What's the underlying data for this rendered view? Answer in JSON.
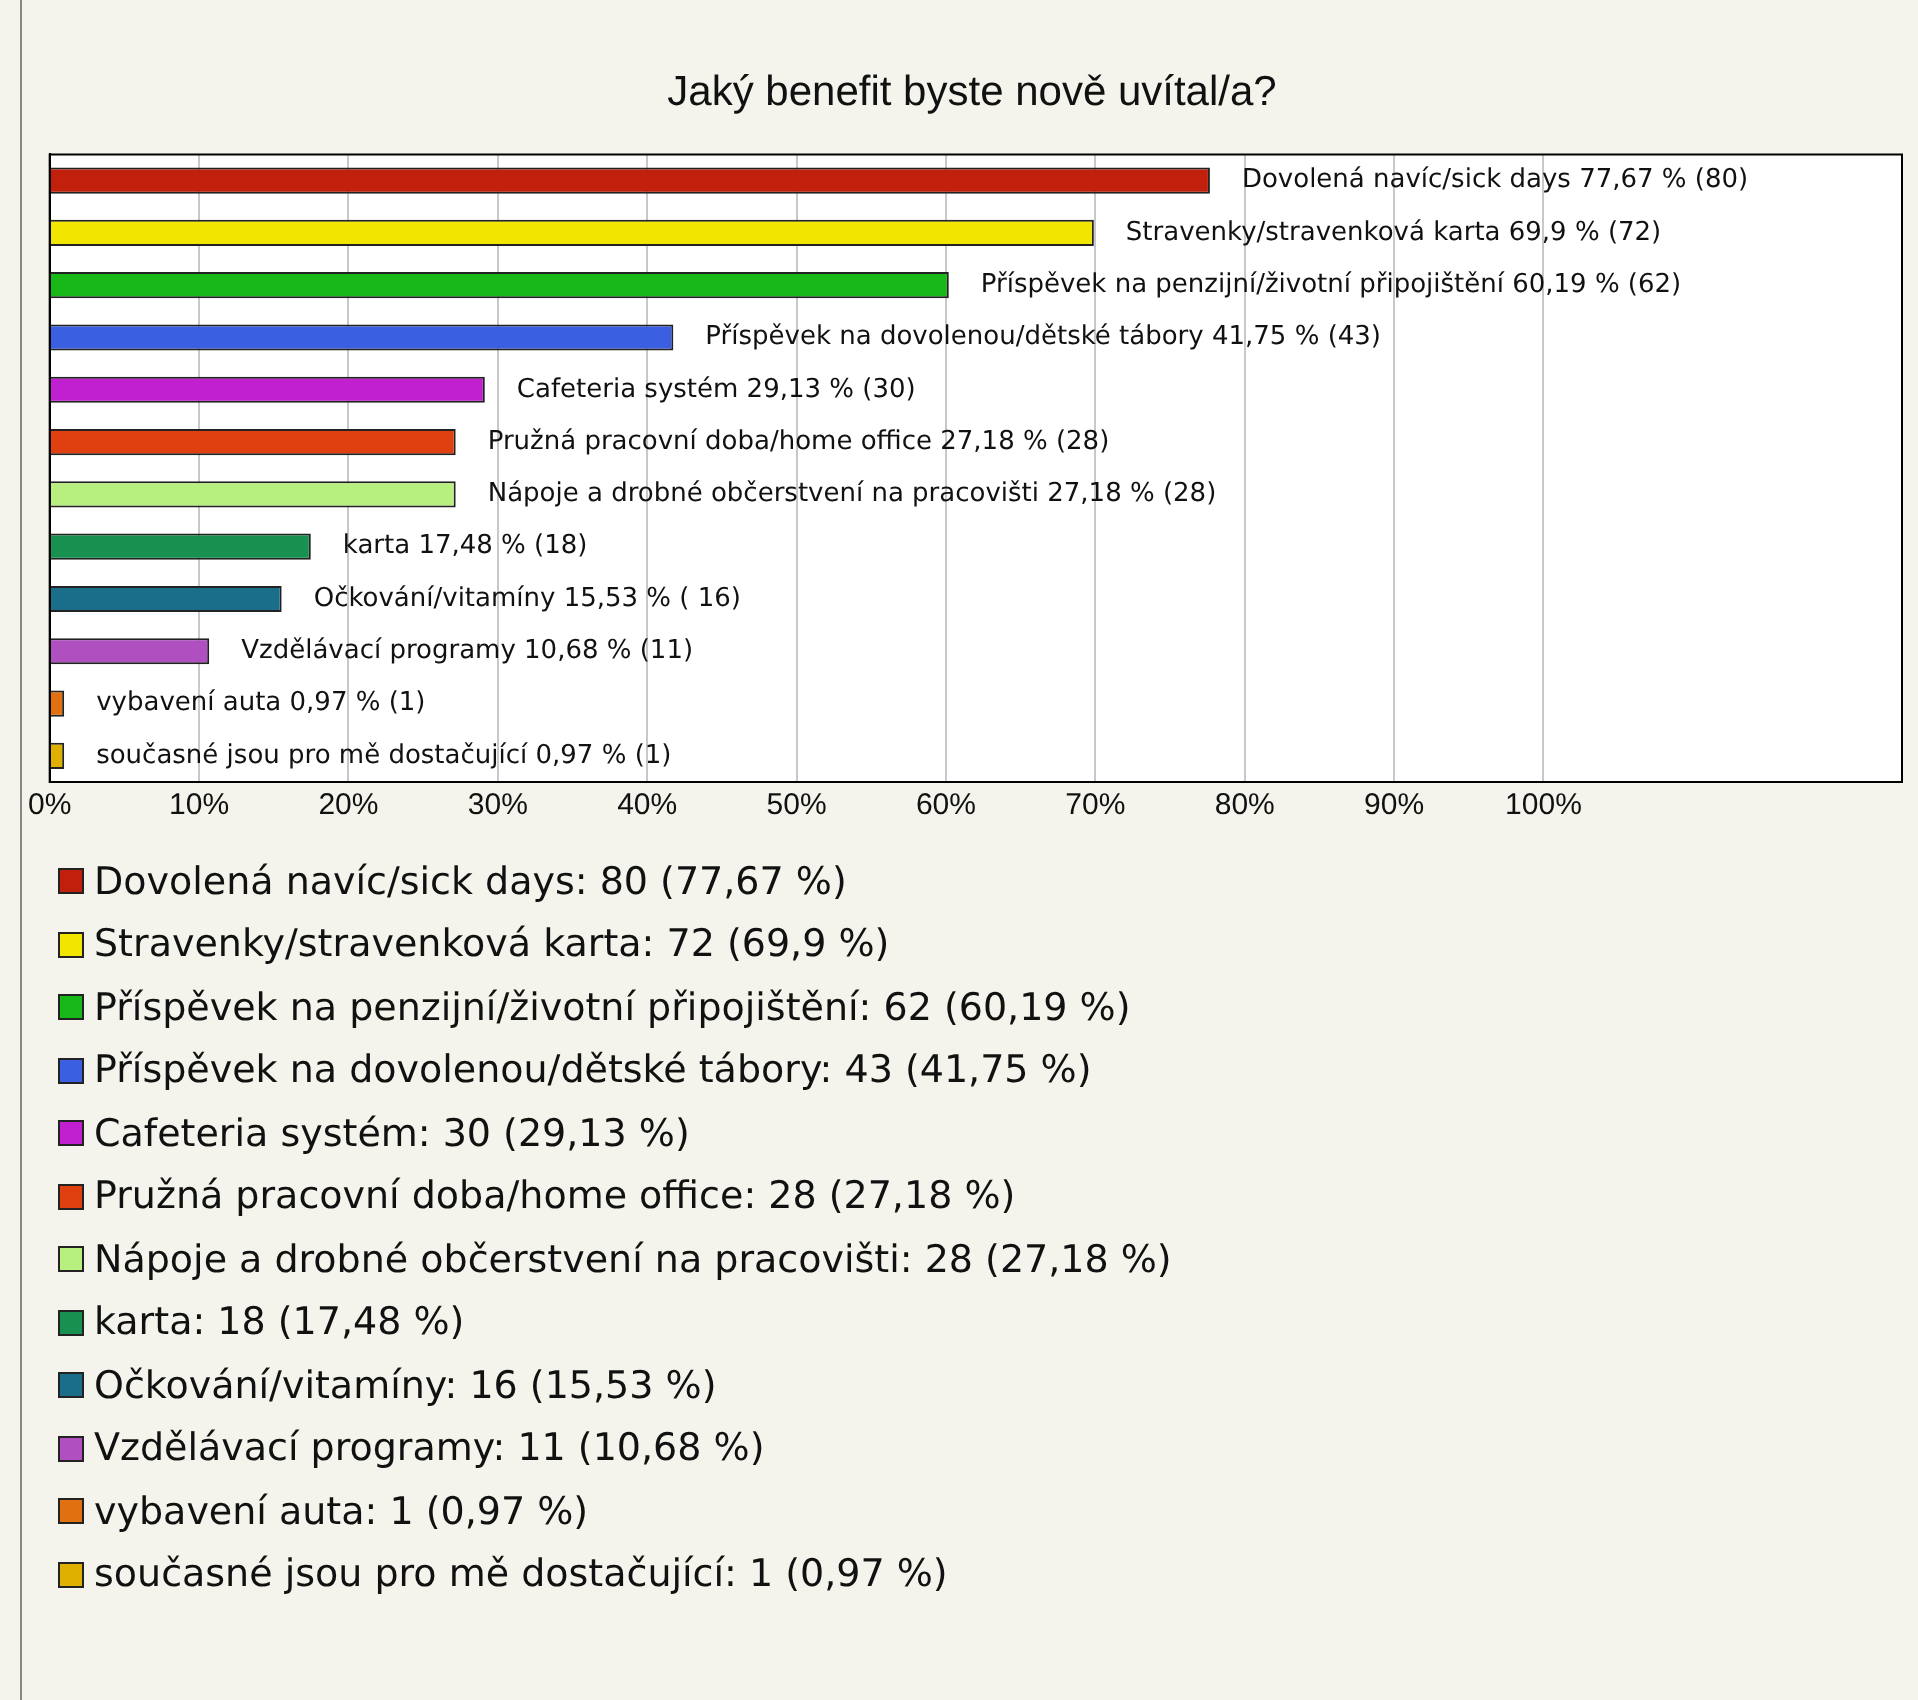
{
  "chart_data": {
    "type": "bar",
    "orientation": "horizontal",
    "title": "Jaký benefit byste nově uvítal/a?",
    "categories": [
      "Dovolená navíc/sick days",
      "Stravenky/stravenková karta",
      "Příspěvek na penzijní/životní připojištění",
      "Příspěvek na dovolenou/dětské tábory",
      "Cafeteria systém",
      "Pružná pracovní doba/home office",
      "Nápoje a drobné občerstvení na pracovišti",
      "karta",
      "Očkování/vitamíny",
      "Vzdělávací programy",
      "vybavení auta",
      "současné jsou pro mě dostačující"
    ],
    "values": [
      77.67,
      69.9,
      60.19,
      41.75,
      29.13,
      27.18,
      27.18,
      17.48,
      15.53,
      10.68,
      0.97,
      0.97
    ],
    "colors": [
      "#c0200c",
      "#f2e600",
      "#18b818",
      "#3a5fe0",
      "#c020d0",
      "#e04010",
      "#b8f080",
      "#189050",
      "#1a6e8a",
      "#b050c0",
      "#e07010",
      "#e0b000"
    ],
    "value_labels": [
      "77,67 % (80)",
      "69,9 % (72)",
      "60,19 % (62)",
      "41,75 % (43)",
      "29,13 % (30)",
      "27,18 % (28)",
      "27,18 % (28)",
      "17,48 % (18)",
      "15,53 % ( 16)",
      "10,68 % (11)",
      "0,97 % (1)",
      "0,97 % (1)"
    ],
    "xlim": [
      0,
      124
    ],
    "xticks": [
      {
        "value": 0,
        "label": "0%"
      },
      {
        "value": 10,
        "label": "10%"
      },
      {
        "value": 20,
        "label": "20%"
      },
      {
        "value": 30,
        "label": "30%"
      },
      {
        "value": 40,
        "label": "40%"
      },
      {
        "value": 50,
        "label": "50%"
      },
      {
        "value": 60,
        "label": "60%"
      },
      {
        "value": 70,
        "label": "70%"
      },
      {
        "value": 80,
        "label": "80%"
      },
      {
        "value": 90,
        "label": "90%"
      },
      {
        "value": 100,
        "label": "100%"
      }
    ],
    "grid": "x",
    "tick_labels": "x",
    "annotations": [
      "Dovolená navíc/sick days: 80 (77,67 %)",
      "Stravenky/stravenková karta: 72 (69,9 %)",
      "Příspěvek na penzijní/životní připojištění: 62 (60,19 %)",
      "Příspěvek na dovolenou/dětské tábory: 43 (41,75 %)",
      "Cafeteria systém: 30 (29,13 %)",
      "Pružná pracovní doba/home office: 28 (27,18 %)",
      "Nápoje a drobné občerstvení na pracovišti: 28 (27,18 %)",
      "karta: 18 (17,48 %)",
      "Očkování/vitamíny: 16 (15,53 %)",
      "Vzdělávací programy: 11 (10,68 %)",
      "vybavení auta: 1 (0,97 %)",
      "současné jsou pro mě dostačující: 1 (0,97 %)"
    ]
  }
}
